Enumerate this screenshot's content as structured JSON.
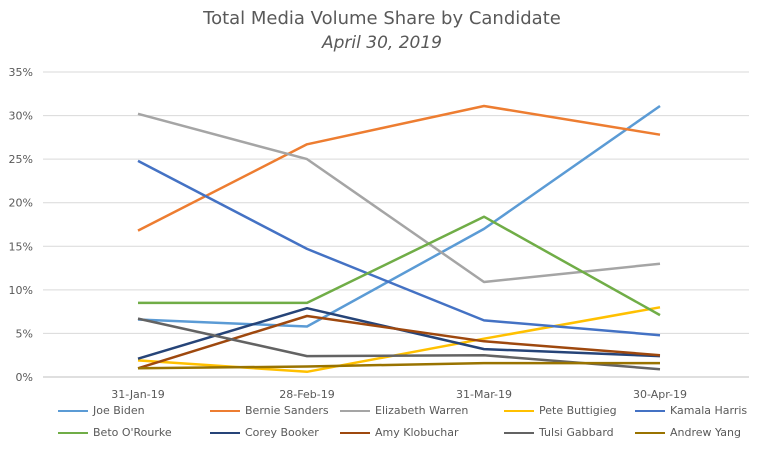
{
  "chart_data": {
    "type": "line",
    "title": "Total Media Volume Share by Candidate",
    "subtitle": "April 30, 2019",
    "categories": [
      "31-Jan-19",
      "28-Feb-19",
      "31-Mar-19",
      "30-Apr-19"
    ],
    "y_ticks": [
      "0%",
      "5%",
      "10%",
      "15%",
      "20%",
      "25%",
      "30%",
      "35%"
    ],
    "ylim": [
      0,
      35
    ],
    "grid": true,
    "legend_position": "bottom",
    "series": [
      {
        "name": "Joe Biden",
        "color": "#5B9BD5",
        "values": [
          6.6,
          5.8,
          17.0,
          31.1
        ]
      },
      {
        "name": "Bernie Sanders",
        "color": "#ED7D31",
        "values": [
          16.8,
          26.7,
          31.1,
          27.8
        ]
      },
      {
        "name": "Elizabeth Warren",
        "color": "#A5A5A5",
        "values": [
          30.2,
          25.0,
          10.9,
          13.0
        ]
      },
      {
        "name": "Pete Buttigieg",
        "color": "#FFC000",
        "values": [
          1.9,
          0.6,
          4.4,
          8.0
        ]
      },
      {
        "name": "Kamala Harris",
        "color": "#4472C4",
        "values": [
          24.8,
          14.7,
          6.5,
          4.8
        ]
      },
      {
        "name": "Beto O'Rourke",
        "color": "#70AD47",
        "values": [
          8.5,
          8.5,
          18.4,
          7.1
        ]
      },
      {
        "name": "Corey Booker",
        "color": "#264478",
        "values": [
          2.1,
          7.9,
          3.2,
          2.4
        ]
      },
      {
        "name": "Amy Klobuchar",
        "color": "#9E480E",
        "values": [
          1.0,
          7.0,
          4.1,
          2.5
        ]
      },
      {
        "name": "Tulsi Gabbard",
        "color": "#636363",
        "values": [
          6.7,
          2.4,
          2.5,
          0.9
        ]
      },
      {
        "name": "Andrew Yang",
        "color": "#997300",
        "values": [
          1.0,
          1.2,
          1.6,
          1.6
        ]
      }
    ]
  }
}
